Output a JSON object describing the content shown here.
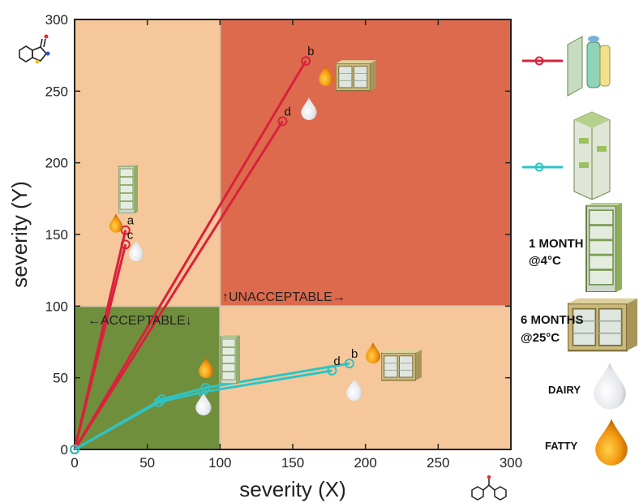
{
  "chart_data": {
    "type": "line",
    "xlabel": "severity (X)",
    "ylabel": "severity (Y)",
    "xlim": [
      0,
      300
    ],
    "ylim": [
      0,
      300
    ],
    "xticks": [
      0,
      50,
      100,
      150,
      200,
      250,
      300
    ],
    "yticks": [
      0,
      50,
      100,
      150,
      200,
      250,
      300
    ],
    "grid": false,
    "regions": [
      {
        "label": "←ACCEPTABLE↓",
        "x": [
          0,
          100
        ],
        "y": [
          0,
          100
        ],
        "color": "#708f3c"
      },
      {
        "label": "↑UNACCEPTABLE→",
        "x": [
          100,
          300
        ],
        "y": [
          100,
          300
        ],
        "color": "#dd6a4d"
      }
    ],
    "background_color": "#f5c79a",
    "series": [
      {
        "color": "#d9213b",
        "lines": [
          {
            "points": [
              [
                0,
                0
              ],
              [
                35,
                153
              ]
            ],
            "end_label": "a"
          },
          {
            "points": [
              [
                0,
                0
              ],
              [
                35,
                143
              ]
            ],
            "end_label": "c"
          },
          {
            "points": [
              [
                0,
                0
              ],
              [
                159,
                271
              ]
            ],
            "end_label": "b"
          },
          {
            "points": [
              [
                0,
                0
              ],
              [
                143,
                229
              ]
            ],
            "end_label": "d"
          }
        ]
      },
      {
        "color": "#2ec4c4",
        "lines": [
          {
            "points": [
              [
                0,
                0
              ],
              [
                60,
                35
              ],
              [
                90,
                43
              ],
              [
                189,
                60
              ]
            ],
            "end_label": "b"
          },
          {
            "points": [
              [
                0,
                0
              ],
              [
                58,
                33
              ],
              [
                88,
                40
              ],
              [
                177,
                55
              ]
            ],
            "end_label": "d"
          }
        ]
      }
    ]
  },
  "legend": {
    "storage_1": {
      "line1": "1 MONTH",
      "line2": "@4°C"
    },
    "storage_2": {
      "line1": "6 MONTHS",
      "line2": "@25°C"
    },
    "dairy": "DAIRY",
    "fatty": "FATTY"
  }
}
